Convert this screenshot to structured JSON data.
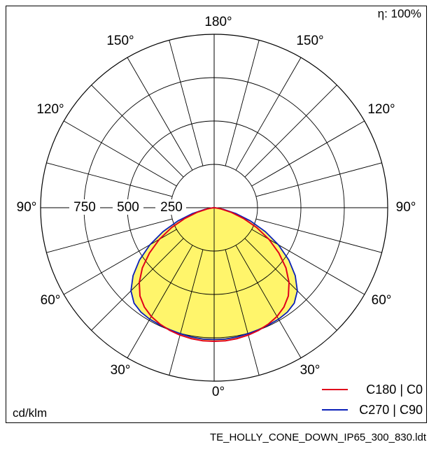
{
  "chart_data": {
    "type": "polar",
    "title": "",
    "efficiency_label": "η: 100%",
    "unit_label": "cd/klm",
    "filename": "TE_HOLLY_CONE_DOWN_IP65_300_830.ldt",
    "angle_labels": {
      "a180": "180°",
      "a150l": "150°",
      "a150r": "150°",
      "a120l": "120°",
      "a120r": "120°",
      "a90l": "90°",
      "a90r": "90°",
      "a60l": "60°",
      "a60r": "60°",
      "a30l": "30°",
      "a30r": "30°",
      "a0": "0°"
    },
    "radial_ticks": [
      {
        "value": 250,
        "label": "250"
      },
      {
        "value": 500,
        "label": "500"
      },
      {
        "value": 750,
        "label": "750"
      }
    ],
    "r_max": 1000,
    "series": [
      {
        "name": "C180 | C0",
        "color": "#e0001b",
        "points": [
          [
            0,
            770
          ],
          [
            5,
            770
          ],
          [
            10,
            766
          ],
          [
            15,
            760
          ],
          [
            20,
            752
          ],
          [
            25,
            740
          ],
          [
            30,
            724
          ],
          [
            35,
            700
          ],
          [
            40,
            665
          ],
          [
            45,
            610
          ],
          [
            50,
            540
          ],
          [
            55,
            455
          ],
          [
            60,
            365
          ],
          [
            65,
            270
          ],
          [
            70,
            180
          ],
          [
            75,
            100
          ],
          [
            80,
            40
          ],
          [
            85,
            8
          ],
          [
            90,
            0
          ]
        ]
      },
      {
        "name": "C270 | C90",
        "color": "#0a1fb8",
        "points": [
          [
            0,
            760
          ],
          [
            5,
            760
          ],
          [
            10,
            757
          ],
          [
            15,
            752
          ],
          [
            20,
            748
          ],
          [
            25,
            745
          ],
          [
            30,
            742
          ],
          [
            35,
            735
          ],
          [
            40,
            718
          ],
          [
            45,
            678
          ],
          [
            50,
            610
          ],
          [
            55,
            525
          ],
          [
            60,
            428
          ],
          [
            65,
            325
          ],
          [
            70,
            222
          ],
          [
            75,
            128
          ],
          [
            80,
            55
          ],
          [
            85,
            12
          ],
          [
            90,
            0
          ]
        ]
      }
    ],
    "fill_color": "#fff56b"
  }
}
